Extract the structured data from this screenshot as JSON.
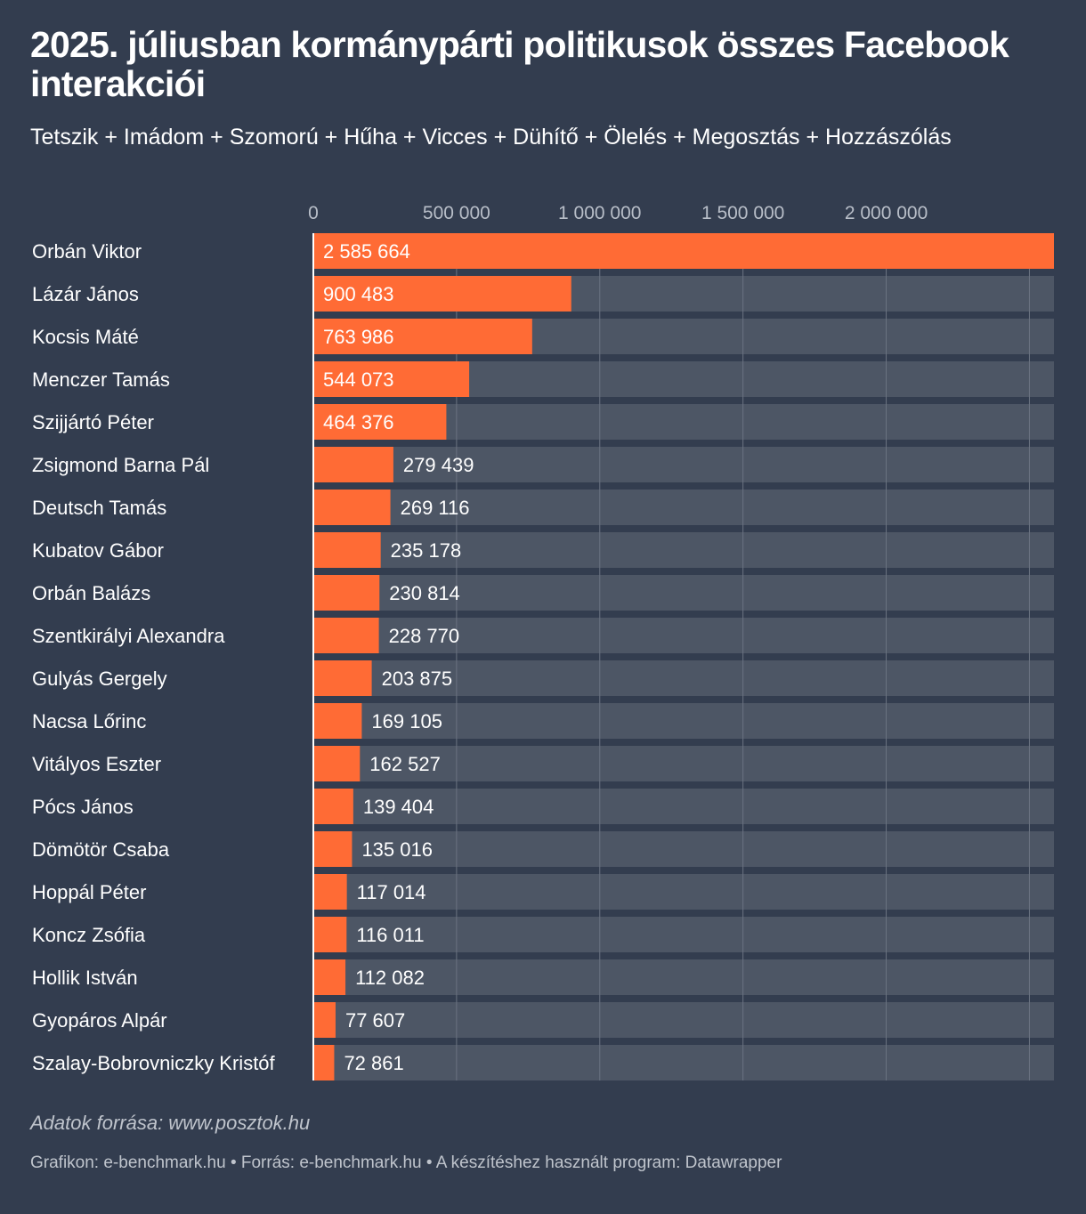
{
  "header": {
    "title": "2025. júliusban kormánypárti politikusok összes Facebook interakciói",
    "subtitle": "Tetszik + Imádom + Szomorú + Hűha + Vicces + Dühítő + Ölelés + Megosztás + Hozzászólás"
  },
  "colors": {
    "background": "#333d4f",
    "bar": "#ff6b35",
    "track": "#4d5665",
    "gridline": "#6b7382",
    "tick_text": "#b8bec8"
  },
  "chart_data": {
    "type": "bar",
    "orientation": "horizontal",
    "title": "2025. júliusban kormánypárti politikusok összes Facebook interakciói",
    "subtitle": "Tetszik + Imádom + Szomorú + Hűha + Vicces + Dühítő + Ölelés + Megosztás + Hozzászólás",
    "xlim": [
      0,
      2585664
    ],
    "x_ticks": [
      0,
      500000,
      1000000,
      1500000,
      2000000
    ],
    "x_tick_labels": [
      "0",
      "500 000",
      "1 000 000",
      "1 500 000",
      "2 000 000"
    ],
    "grid": true,
    "categories": [
      "Orbán Viktor",
      "Lázár János",
      "Kocsis Máté",
      "Menczer Tamás",
      "Szijjártó Péter",
      "Zsigmond Barna Pál",
      "Deutsch Tamás",
      "Kubatov Gábor",
      "Orbán Balázs",
      "Szentkirályi Alexandra",
      "Gulyás Gergely",
      "Nacsa Lőrinc",
      "Vitályos Eszter",
      "Pócs János",
      "Dömötör Csaba",
      "Hoppál Péter",
      "Koncz Zsófia",
      "Hollik István",
      "Gyopáros Alpár",
      "Szalay-Bobrovniczky Kristóf"
    ],
    "values": [
      2585664,
      900483,
      763986,
      544073,
      464376,
      279439,
      269116,
      235178,
      230814,
      228770,
      203875,
      169105,
      162527,
      139404,
      135016,
      117014,
      116011,
      112082,
      77607,
      72861
    ],
    "value_labels": [
      "2 585 664",
      "900 483",
      "763 986",
      "544 073",
      "464 376",
      "279 439",
      "269 116",
      "235 178",
      "230 814",
      "228 770",
      "203 875",
      "169 105",
      "162 527",
      "139 404",
      "135 016",
      "117 014",
      "116 011",
      "112 082",
      "77 607",
      "72 861"
    ]
  },
  "footer": {
    "source": "Adatok forrása: www.posztok.hu",
    "credits": "Grafikon: e-benchmark.hu • Forrás: e-benchmark.hu • A készítéshez használt program: Datawrapper"
  }
}
